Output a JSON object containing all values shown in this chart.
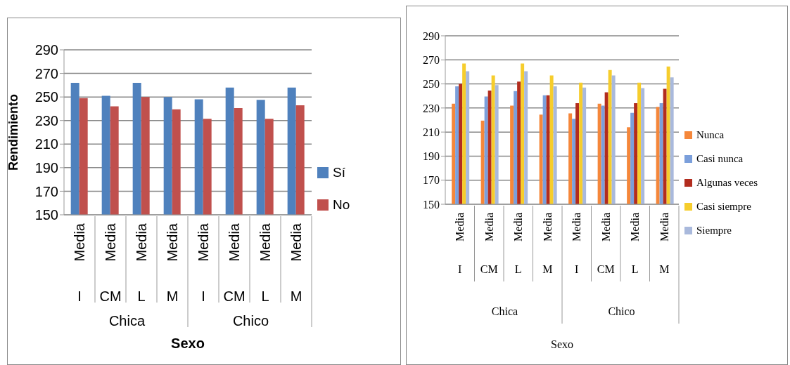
{
  "chart_data": [
    {
      "type": "bar",
      "ylabel": "Rendimiento",
      "xlabel": "Sexo",
      "categories": [
        "I",
        "CM",
        "L",
        "M",
        "I",
        "CM",
        "L",
        "M"
      ],
      "annotations": [
        "Media",
        "Media",
        "Media",
        "Media",
        "Media",
        "Media",
        "Media",
        "Media",
        "Chica",
        "Chico"
      ],
      "series": [
        {
          "name": "Sí",
          "color": "#4f81bd",
          "values": [
            262,
            251,
            262,
            250,
            248,
            258,
            247.5,
            258
          ]
        },
        {
          "name": "No",
          "color": "#c0504d",
          "values": [
            249,
            242,
            250,
            239.5,
            231.5,
            240.5,
            231.5,
            243
          ]
        }
      ],
      "ylim": [
        150,
        290
      ],
      "yticks": [
        150,
        170,
        190,
        210,
        230,
        250,
        270,
        290
      ],
      "grid": "y",
      "legend": "right"
    },
    {
      "type": "bar",
      "xlabel": "Sexo",
      "categories": [
        "I",
        "CM",
        "L",
        "M",
        "I",
        "CM",
        "L",
        "M"
      ],
      "annotations": [
        "Media",
        "Media",
        "Media",
        "Media",
        "Media",
        "Media",
        "Media",
        "Media",
        "Chica",
        "Chico"
      ],
      "series": [
        {
          "name": "Nunca",
          "color": "#f5873a",
          "values": [
            233.5,
            219.5,
            232,
            224.5,
            225.5,
            233.5,
            214,
            231
          ]
        },
        {
          "name": "Casi nunca",
          "color": "#7b9fdb",
          "values": [
            248,
            239.5,
            244,
            240.5,
            221,
            232,
            226,
            234
          ]
        },
        {
          "name": "Algunas veces",
          "color": "#b22c1e",
          "values": [
            250,
            244.5,
            252,
            240.5,
            234,
            243,
            234,
            246
          ]
        },
        {
          "name": "Casi siempre",
          "color": "#f6cd2c",
          "values": [
            267,
            257,
            267,
            257,
            251,
            261.5,
            251,
            264.5
          ]
        },
        {
          "name": "Siempre",
          "color": "#a9b9dc",
          "values": [
            260.5,
            249,
            260.5,
            248,
            247,
            257,
            246.5,
            255.5
          ]
        }
      ],
      "ylim": [
        150,
        290
      ],
      "yticks": [
        150,
        170,
        190,
        210,
        230,
        250,
        270,
        290
      ],
      "grid": "y",
      "legend": "right"
    }
  ]
}
